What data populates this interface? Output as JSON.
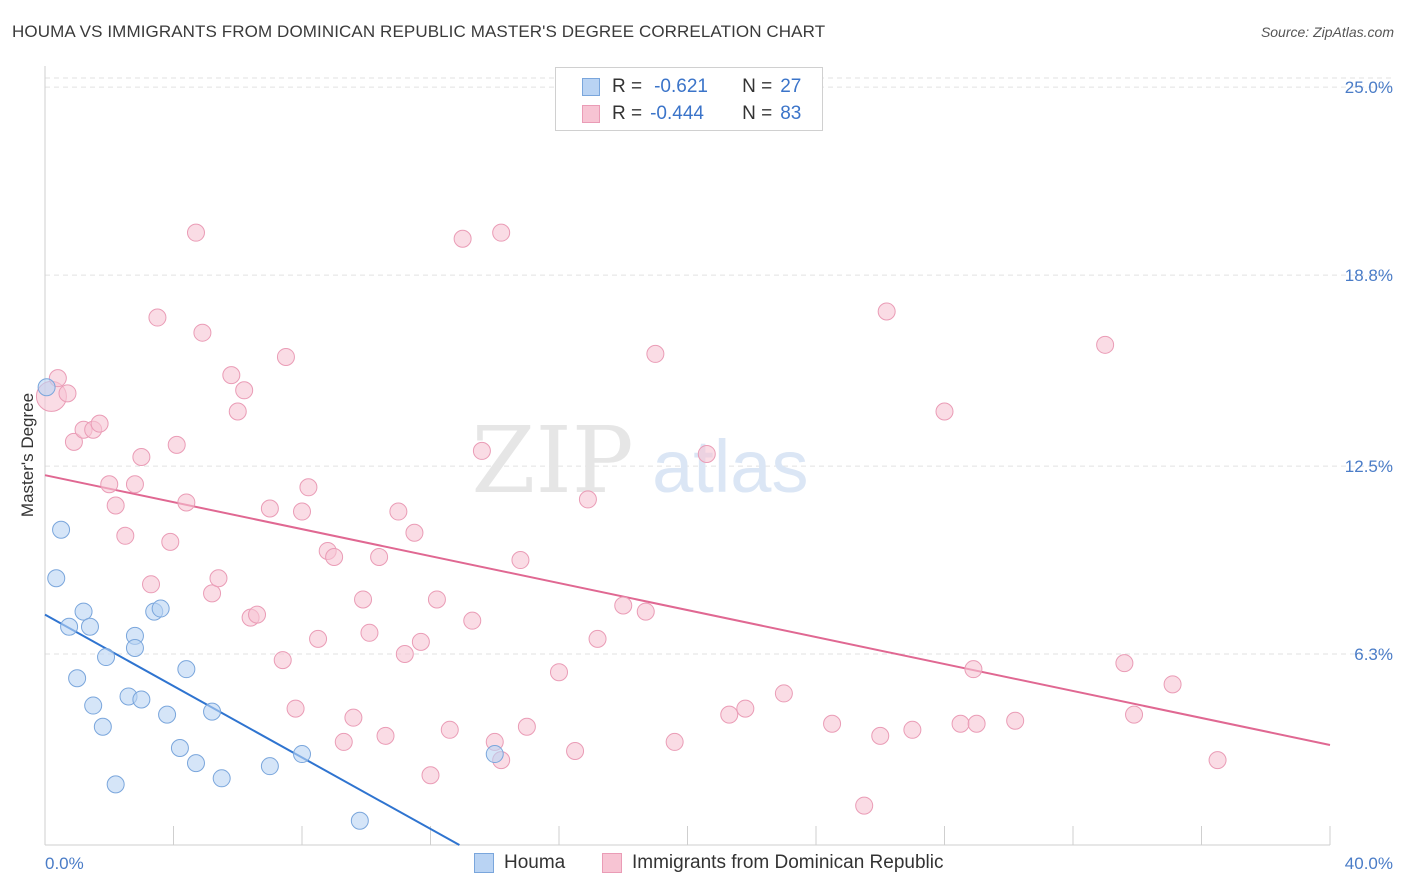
{
  "header": {
    "title": "HOUMA VS IMMIGRANTS FROM DOMINICAN REPUBLIC MASTER'S DEGREE CORRELATION CHART",
    "source": "Source: ZipAtlas.com"
  },
  "watermark": {
    "zip": "ZIP",
    "atlas": "atlas"
  },
  "legend": {
    "rows": [
      {
        "r_label": "R =",
        "r_value": "-0.621",
        "n_label": "N =",
        "n_value": "27"
      },
      {
        "r_label": "R =",
        "r_value": "-0.444",
        "n_label": "N =",
        "n_value": "83"
      }
    ]
  },
  "colors": {
    "houma_fill": "#b9d3f3",
    "houma_stroke": "#7aa6dc",
    "houma_line": "#2f74d0",
    "dr_fill": "#f7c4d3",
    "dr_stroke": "#ea9cb6",
    "dr_line": "#e06892",
    "tick_text": "#4a7cc7",
    "grid": "#e2e2e2"
  },
  "chart_data": {
    "type": "scatter",
    "title": "HOUMA VS IMMIGRANTS FROM DOMINICAN REPUBLIC MASTER'S DEGREE CORRELATION CHART",
    "xlabel": "",
    "ylabel": "Master's Degree",
    "xlim": [
      0,
      40
    ],
    "ylim": [
      0,
      25.5
    ],
    "x_tick_labels": [
      "0.0%",
      "40.0%"
    ],
    "y_ticks": [
      6.3,
      12.5,
      18.8,
      25.0
    ],
    "y_tick_labels": [
      "6.3%",
      "12.5%",
      "18.8%",
      "25.0%"
    ],
    "grid": true,
    "legend_position": "bottom",
    "series": [
      {
        "name": "Houma",
        "r": -0.621,
        "n": 27,
        "trend": {
          "x": [
            0,
            12.9
          ],
          "y": [
            7.6,
            0.0
          ]
        },
        "points": [
          [
            0.05,
            15.1
          ],
          [
            0.5,
            10.4
          ],
          [
            0.35,
            8.8
          ],
          [
            0.75,
            7.2
          ],
          [
            1.2,
            7.7
          ],
          [
            1.4,
            7.2
          ],
          [
            1.9,
            6.2
          ],
          [
            2.8,
            6.9
          ],
          [
            3.4,
            7.7
          ],
          [
            3.6,
            7.8
          ],
          [
            2.8,
            6.5
          ],
          [
            1.0,
            5.5
          ],
          [
            1.5,
            4.6
          ],
          [
            1.8,
            3.9
          ],
          [
            2.6,
            4.9
          ],
          [
            3.0,
            4.8
          ],
          [
            3.8,
            4.3
          ],
          [
            4.4,
            5.8
          ],
          [
            5.2,
            4.4
          ],
          [
            4.2,
            3.2
          ],
          [
            4.7,
            2.7
          ],
          [
            5.5,
            2.2
          ],
          [
            2.2,
            2.0
          ],
          [
            7.0,
            2.6
          ],
          [
            8.0,
            3.0
          ],
          [
            14.0,
            3.0
          ],
          [
            9.8,
            0.8
          ]
        ]
      },
      {
        "name": "Immigrants from Dominican Republic",
        "r": -0.444,
        "n": 83,
        "trend": {
          "x": [
            0,
            40
          ],
          "y": [
            12.2,
            3.3
          ]
        },
        "points": [
          [
            0.2,
            14.8
          ],
          [
            0.4,
            15.4
          ],
          [
            0.7,
            14.9
          ],
          [
            0.9,
            13.3
          ],
          [
            1.2,
            13.7
          ],
          [
            1.5,
            13.7
          ],
          [
            1.7,
            13.9
          ],
          [
            2.0,
            11.9
          ],
          [
            2.2,
            11.2
          ],
          [
            2.5,
            10.2
          ],
          [
            2.8,
            11.9
          ],
          [
            3.0,
            12.8
          ],
          [
            3.3,
            8.6
          ],
          [
            3.5,
            17.4
          ],
          [
            3.9,
            10.0
          ],
          [
            4.1,
            13.2
          ],
          [
            4.4,
            11.3
          ],
          [
            4.7,
            20.2
          ],
          [
            4.9,
            16.9
          ],
          [
            5.2,
            8.3
          ],
          [
            5.4,
            8.8
          ],
          [
            5.8,
            15.5
          ],
          [
            6.0,
            14.3
          ],
          [
            6.2,
            15.0
          ],
          [
            6.4,
            7.5
          ],
          [
            6.6,
            7.6
          ],
          [
            7.0,
            11.1
          ],
          [
            7.4,
            6.1
          ],
          [
            7.5,
            16.1
          ],
          [
            7.8,
            4.5
          ],
          [
            8.0,
            11.0
          ],
          [
            8.2,
            11.8
          ],
          [
            8.5,
            6.8
          ],
          [
            8.8,
            9.7
          ],
          [
            9.0,
            9.5
          ],
          [
            9.3,
            3.4
          ],
          [
            9.6,
            4.2
          ],
          [
            9.9,
            8.1
          ],
          [
            10.1,
            7.0
          ],
          [
            10.4,
            9.5
          ],
          [
            10.6,
            3.6
          ],
          [
            11.0,
            11.0
          ],
          [
            11.2,
            6.3
          ],
          [
            11.5,
            10.3
          ],
          [
            11.7,
            6.7
          ],
          [
            12.0,
            2.3
          ],
          [
            12.2,
            8.1
          ],
          [
            12.6,
            3.8
          ],
          [
            13.0,
            20.0
          ],
          [
            13.3,
            7.4
          ],
          [
            13.6,
            13.0
          ],
          [
            14.2,
            20.2
          ],
          [
            14.0,
            3.4
          ],
          [
            14.2,
            2.8
          ],
          [
            14.8,
            9.4
          ],
          [
            15.0,
            3.9
          ],
          [
            16.0,
            5.7
          ],
          [
            16.5,
            3.1
          ],
          [
            16.9,
            11.4
          ],
          [
            17.2,
            6.8
          ],
          [
            18.0,
            7.9
          ],
          [
            18.7,
            7.7
          ],
          [
            19.0,
            16.2
          ],
          [
            19.6,
            3.4
          ],
          [
            20.6,
            12.9
          ],
          [
            21.3,
            4.3
          ],
          [
            21.8,
            4.5
          ],
          [
            23.0,
            5.0
          ],
          [
            24.5,
            4.0
          ],
          [
            25.5,
            1.3
          ],
          [
            26.0,
            3.6
          ],
          [
            26.2,
            17.6
          ],
          [
            27.0,
            3.8
          ],
          [
            28.0,
            14.3
          ],
          [
            28.5,
            4.0
          ],
          [
            28.9,
            5.8
          ],
          [
            29.0,
            4.0
          ],
          [
            30.2,
            4.1
          ],
          [
            33.0,
            16.5
          ],
          [
            33.6,
            6.0
          ],
          [
            33.9,
            4.3
          ],
          [
            35.1,
            5.3
          ],
          [
            36.5,
            2.8
          ]
        ]
      }
    ]
  }
}
